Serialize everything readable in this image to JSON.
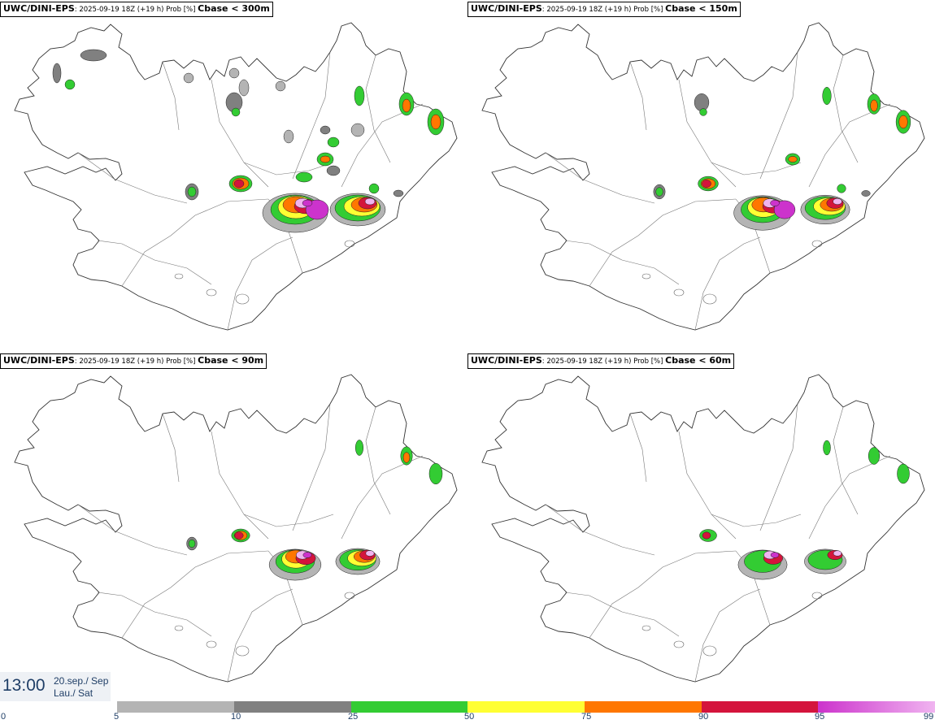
{
  "panels": [
    {
      "source": "UWC/DINI-EPS",
      "meta": ": 2025-09-19 18Z (+19 h) Prob [%] ",
      "threshold": "Cbase < 300m",
      "intensity": 1.0
    },
    {
      "source": "UWC/DINI-EPS",
      "meta": ": 2025-09-19 18Z (+19 h) Prob [%] ",
      "threshold": "Cbase < 150m",
      "intensity": 0.75
    },
    {
      "source": "UWC/DINI-EPS",
      "meta": ": 2025-09-19 18Z (+19 h) Prob [%] ",
      "threshold": "Cbase < 90m",
      "intensity": 0.55
    },
    {
      "source": "UWC/DINI-EPS",
      "meta": ": 2025-09-19 18Z (+19 h) Prob [%] ",
      "threshold": "Cbase < 60m",
      "intensity": 0.45
    }
  ],
  "valid_time": {
    "clock": "13:00",
    "date": "20.sep./ Sep",
    "day": "Lau./ Sat"
  },
  "legend": {
    "ticks": [
      "0",
      "5",
      "10",
      "25",
      "50",
      "75",
      "90",
      "95",
      "99"
    ],
    "colors": [
      "#ffffff",
      "#b4b4b4",
      "#808080",
      "#33cc33",
      "#ffff33",
      "#ff7700",
      "#d4143c",
      "#cc33cc",
      "#f0b4f0"
    ]
  },
  "colors": {
    "outline": "#555555",
    "text_dark": "#1f3e66"
  }
}
